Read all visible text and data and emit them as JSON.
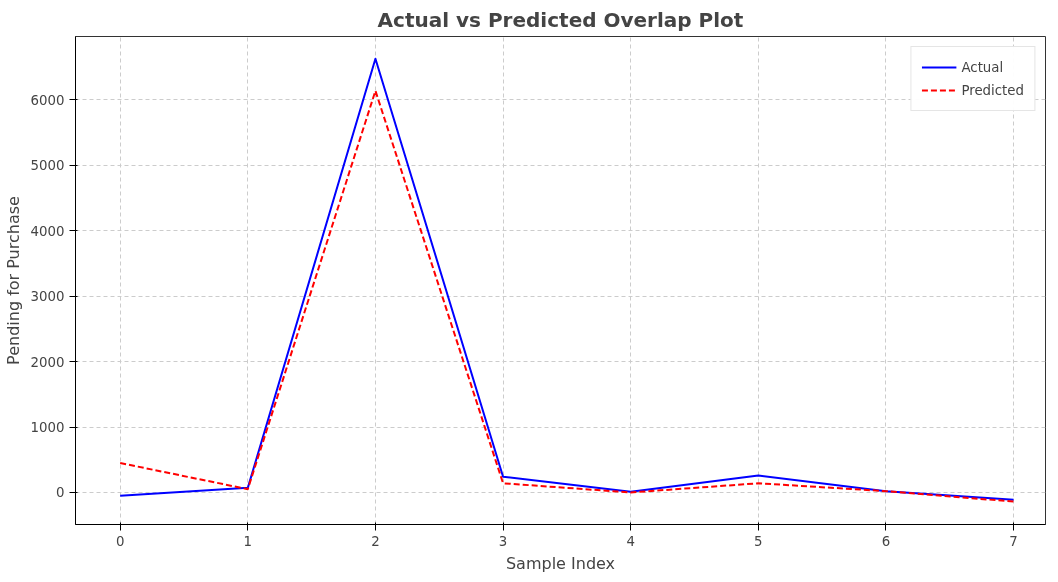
{
  "chart_data": {
    "type": "line",
    "title": "Actual vs Predicted Overlap Plot",
    "xlabel": "Sample Index",
    "ylabel": "Pending for Purchase",
    "x": [
      0,
      1,
      2,
      3,
      4,
      5,
      6,
      7
    ],
    "series": [
      {
        "name": "Actual",
        "color": "#0000ff",
        "values": [
          -50,
          70,
          6630,
          240,
          10,
          260,
          20,
          -110
        ],
        "line_style": "solid"
      },
      {
        "name": "Predicted",
        "color": "#ff0000",
        "values": [
          450,
          50,
          6140,
          140,
          0,
          140,
          20,
          -140
        ],
        "line_style": "dashed"
      }
    ],
    "xlim": [
      -0.35,
      7.25
    ],
    "xticks": [
      0,
      1,
      2,
      3,
      4,
      5,
      6,
      7
    ],
    "ylim": [
      -490,
      6970
    ],
    "yticks": [
      0,
      1000,
      2000,
      3000,
      4000,
      5000,
      6000
    ],
    "grid": true,
    "legend": "top right",
    "marker": "none"
  }
}
